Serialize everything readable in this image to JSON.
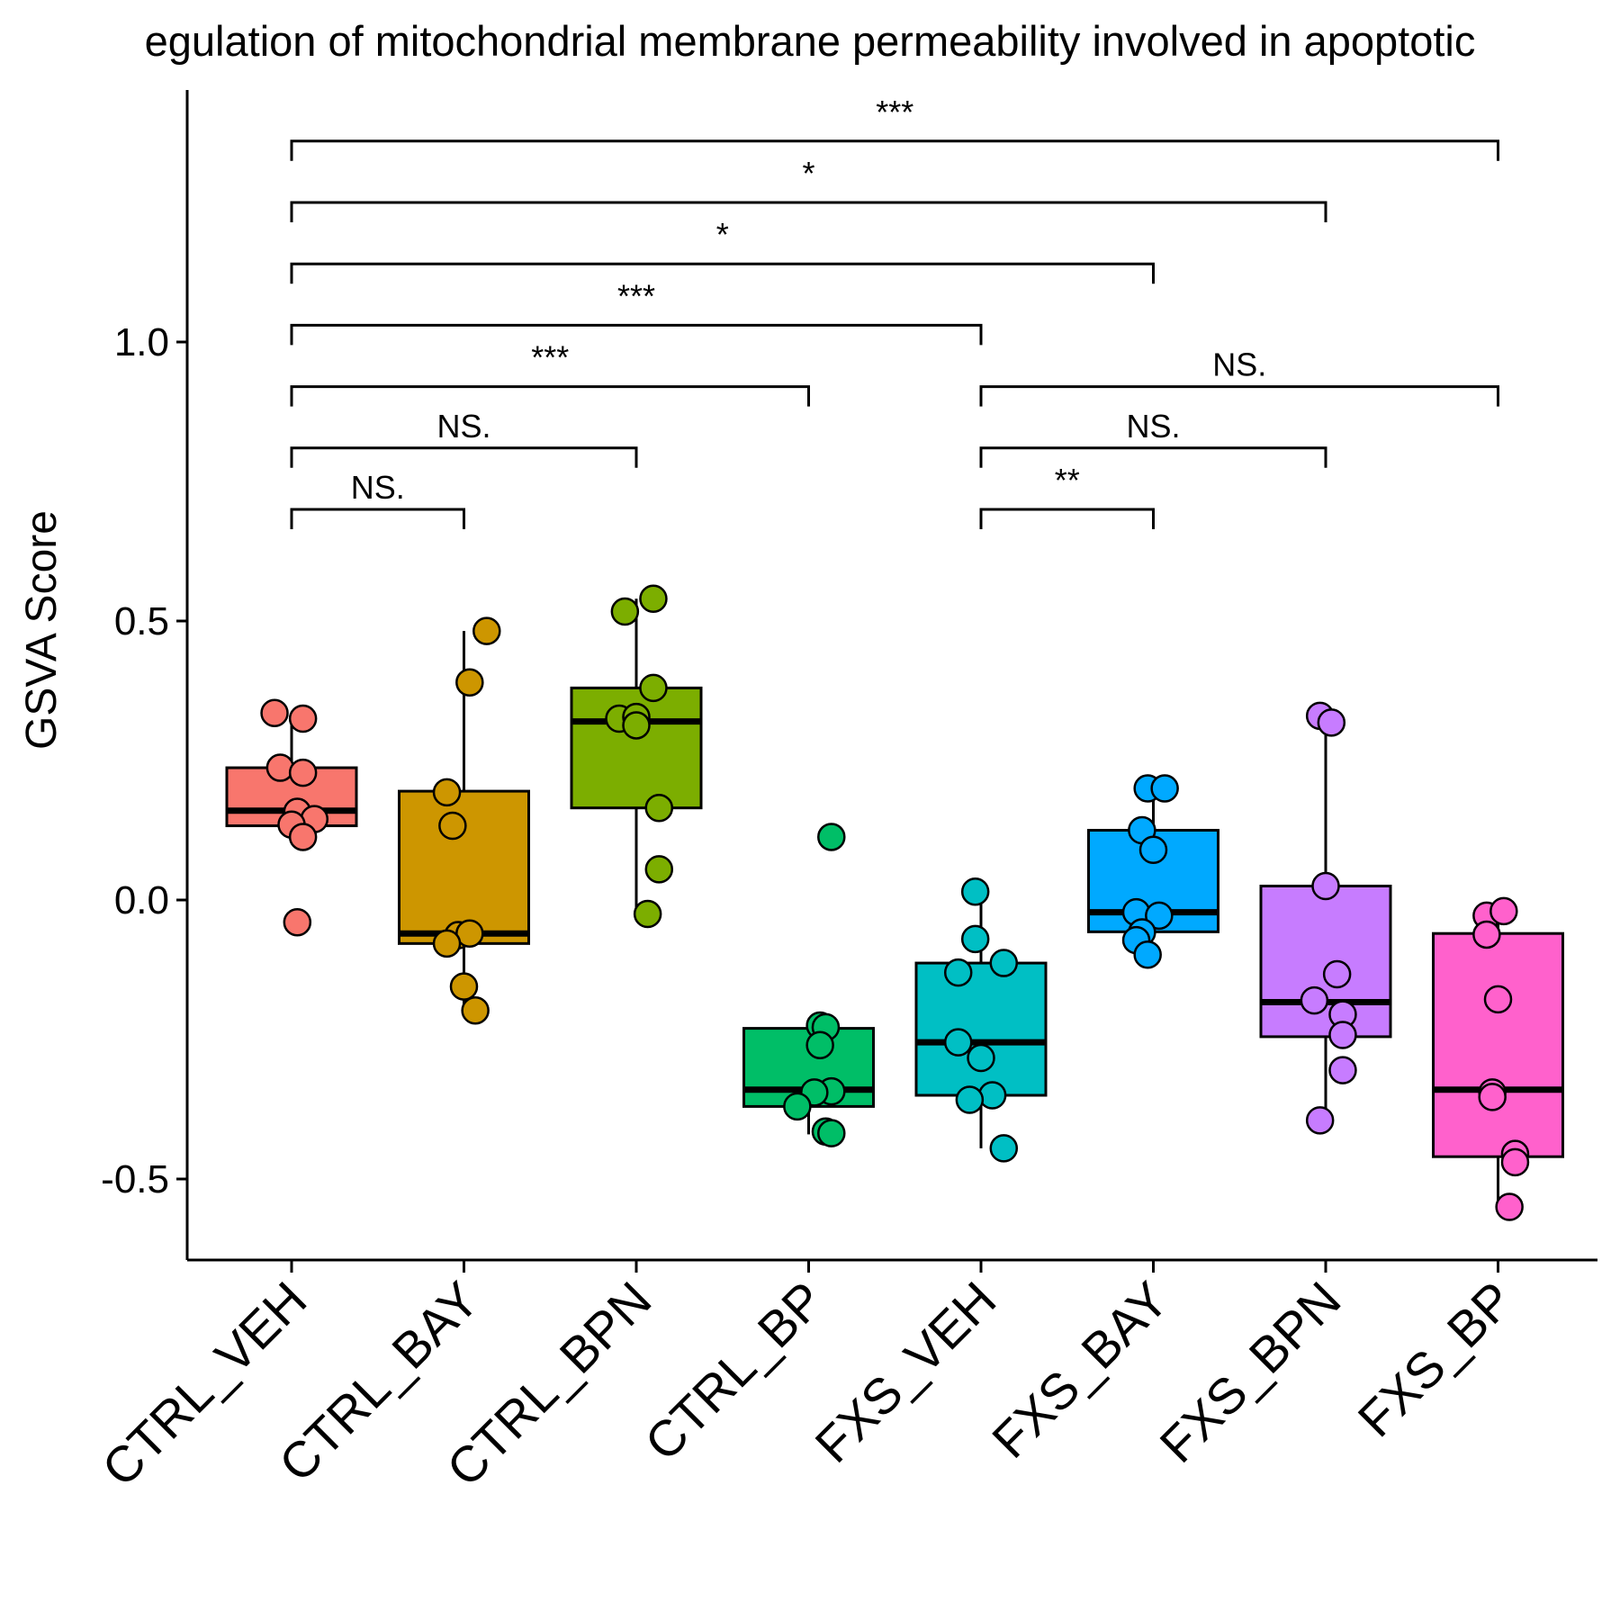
{
  "chart_data": {
    "type": "box",
    "title": "egulation of mitochondrial membrane permeability involved in apoptotic",
    "xlabel": "",
    "ylabel": "GSVA Score",
    "ylim": [
      -0.64,
      1.45
    ],
    "yticks": [
      -0.5,
      0.0,
      0.5,
      1.0
    ],
    "ytick_labels": [
      "-0.5",
      "0.0",
      "0.5",
      "1.0"
    ],
    "grid": false,
    "legend": "none",
    "categories": [
      "CTRL_VEH",
      "CTRL_BAY",
      "CTRL_BPN",
      "CTRL_BP",
      "FXS_VEH",
      "FXS_BAY",
      "FXS_BPN",
      "FXS_BP"
    ],
    "colors": [
      "#F8766D",
      "#CD9600",
      "#7CAE00",
      "#00BE67",
      "#00BFC4",
      "#00A9FF",
      "#C77CFF",
      "#FF61CC"
    ],
    "boxes": [
      {
        "q1": 0.133,
        "median": 0.16,
        "q3": 0.237,
        "whisker_low": 0.133,
        "whisker_high": 0.335
      },
      {
        "q1": -0.078,
        "median": -0.06,
        "q3": 0.195,
        "whisker_low": -0.195,
        "whisker_high": 0.482
      },
      {
        "q1": 0.165,
        "median": 0.32,
        "q3": 0.38,
        "whisker_low": -0.025,
        "whisker_high": 0.54
      },
      {
        "q1": -0.37,
        "median": -0.34,
        "q3": -0.23,
        "whisker_low": -0.42,
        "whisker_high": -0.23
      },
      {
        "q1": -0.35,
        "median": -0.255,
        "q3": -0.113,
        "whisker_low": -0.445,
        "whisker_high": 0.015
      },
      {
        "q1": -0.057,
        "median": -0.022,
        "q3": 0.125,
        "whisker_low": -0.057,
        "whisker_high": 0.2
      },
      {
        "q1": -0.245,
        "median": -0.183,
        "q3": 0.025,
        "whisker_low": -0.395,
        "whisker_high": 0.325
      },
      {
        "q1": -0.46,
        "median": -0.34,
        "q3": -0.06,
        "whisker_low": -0.55,
        "whisker_high": -0.02
      }
    ],
    "points": [
      [
        [
          -0.03,
          0.335
        ],
        [
          0.02,
          0.325
        ],
        [
          -0.02,
          0.237
        ],
        [
          0.02,
          0.228
        ],
        [
          0.01,
          0.158
        ],
        [
          0.04,
          0.145
        ],
        [
          0.0,
          0.135
        ],
        [
          0.02,
          0.113
        ],
        [
          0.01,
          -0.04
        ]
      ],
      [
        [
          0.04,
          0.482
        ],
        [
          0.01,
          0.39
        ],
        [
          -0.03,
          0.193
        ],
        [
          -0.02,
          0.133
        ],
        [
          -0.01,
          -0.063
        ],
        [
          0.01,
          -0.06
        ],
        [
          -0.03,
          -0.078
        ],
        [
          0.0,
          -0.155
        ],
        [
          0.02,
          -0.198
        ]
      ],
      [
        [
          -0.02,
          0.517
        ],
        [
          0.03,
          0.54
        ],
        [
          0.03,
          0.38
        ],
        [
          -0.03,
          0.325
        ],
        [
          0.0,
          0.328
        ],
        [
          0.0,
          0.313
        ],
        [
          0.04,
          0.165
        ],
        [
          0.04,
          0.055
        ],
        [
          0.02,
          -0.025
        ]
      ],
      [
        [
          0.04,
          0.113
        ],
        [
          0.02,
          -0.225
        ],
        [
          0.03,
          -0.228
        ],
        [
          0.02,
          -0.26
        ],
        [
          0.04,
          -0.343
        ],
        [
          0.01,
          -0.345
        ],
        [
          -0.02,
          -0.37
        ],
        [
          0.03,
          -0.415
        ],
        [
          0.04,
          -0.418
        ]
      ],
      [
        [
          -0.01,
          0.015
        ],
        [
          -0.01,
          -0.07
        ],
        [
          0.04,
          -0.113
        ],
        [
          -0.04,
          -0.13
        ],
        [
          -0.04,
          -0.255
        ],
        [
          0.0,
          -0.283
        ],
        [
          0.02,
          -0.35
        ],
        [
          -0.02,
          -0.358
        ],
        [
          0.04,
          -0.445
        ]
      ],
      [
        [
          -0.01,
          0.2
        ],
        [
          0.02,
          0.2
        ],
        [
          -0.02,
          0.125
        ],
        [
          0.0,
          0.09
        ],
        [
          -0.03,
          -0.022
        ],
        [
          0.01,
          -0.028
        ],
        [
          -0.02,
          -0.058
        ],
        [
          -0.03,
          -0.072
        ],
        [
          -0.01,
          -0.098
        ]
      ],
      [
        [
          -0.01,
          0.33
        ],
        [
          0.01,
          0.318
        ],
        [
          0.0,
          0.025
        ],
        [
          0.02,
          -0.133
        ],
        [
          -0.02,
          -0.18
        ],
        [
          0.03,
          -0.205
        ],
        [
          0.03,
          -0.242
        ],
        [
          0.03,
          -0.305
        ],
        [
          -0.01,
          -0.395
        ]
      ],
      [
        [
          -0.02,
          -0.028
        ],
        [
          0.01,
          -0.02
        ],
        [
          -0.02,
          -0.062
        ],
        [
          0.0,
          -0.178
        ],
        [
          -0.01,
          -0.345
        ],
        [
          -0.01,
          -0.353
        ],
        [
          0.03,
          -0.455
        ],
        [
          0.03,
          -0.47
        ],
        [
          0.02,
          -0.55
        ]
      ]
    ],
    "comparisons": [
      {
        "from": 0,
        "to": 1,
        "y": 0.7,
        "label": "NS."
      },
      {
        "from": 0,
        "to": 2,
        "y": 0.81,
        "label": "NS."
      },
      {
        "from": 0,
        "to": 3,
        "y": 0.92,
        "label": "***"
      },
      {
        "from": 0,
        "to": 4,
        "y": 1.03,
        "label": "***"
      },
      {
        "from": 0,
        "to": 5,
        "y": 1.14,
        "label": "*"
      },
      {
        "from": 0,
        "to": 6,
        "y": 1.25,
        "label": "*"
      },
      {
        "from": 0,
        "to": 7,
        "y": 1.36,
        "label": "***"
      },
      {
        "from": 4,
        "to": 5,
        "y": 0.7,
        "label": "**"
      },
      {
        "from": 4,
        "to": 6,
        "y": 0.81,
        "label": "NS."
      },
      {
        "from": 4,
        "to": 7,
        "y": 0.92,
        "label": "NS."
      }
    ]
  }
}
